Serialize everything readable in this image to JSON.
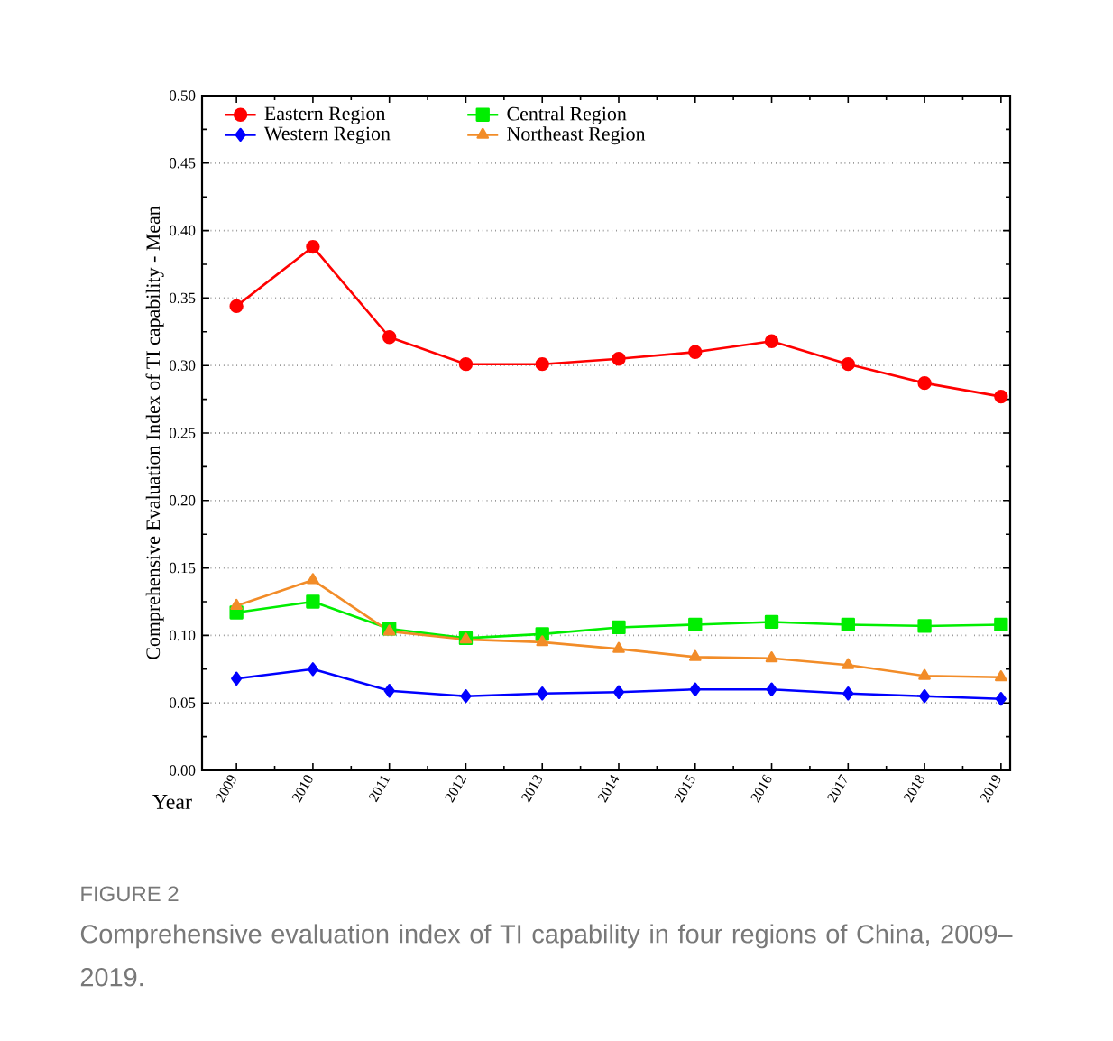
{
  "chart_data": {
    "type": "line",
    "categories": [
      "2009",
      "2010",
      "2011",
      "2012",
      "2013",
      "2014",
      "2015",
      "2016",
      "2017",
      "2018",
      "2019"
    ],
    "xlabel": "Year",
    "ylabel": "Comprehensive Evaluation Index of TI capability - Mean",
    "series": [
      {
        "name": "Eastern Region",
        "color": "#ff0000",
        "marker": "circle",
        "values": [
          0.344,
          0.388,
          0.321,
          0.301,
          0.301,
          0.305,
          0.31,
          0.318,
          0.301,
          0.287,
          0.277
        ]
      },
      {
        "name": "Central Region",
        "color": "#00ee00",
        "marker": "square",
        "values": [
          0.117,
          0.125,
          0.105,
          0.098,
          0.101,
          0.106,
          0.108,
          0.11,
          0.108,
          0.107,
          0.108
        ]
      },
      {
        "name": "Western Region",
        "color": "#0000ff",
        "marker": "diamond",
        "values": [
          0.068,
          0.075,
          0.059,
          0.055,
          0.057,
          0.058,
          0.06,
          0.06,
          0.057,
          0.055,
          0.053
        ]
      },
      {
        "name": "Northeast Region",
        "color": "#f28c28",
        "marker": "triangle",
        "values": [
          0.122,
          0.141,
          0.103,
          0.097,
          0.095,
          0.09,
          0.084,
          0.083,
          0.078,
          0.07,
          0.069
        ]
      }
    ],
    "ylim": [
      0,
      0.5
    ],
    "yticks": [
      {
        "value": 0,
        "label": "0.00"
      },
      {
        "value": 0.05,
        "label": "0.05"
      },
      {
        "value": 0.1,
        "label": "0.10"
      },
      {
        "value": 0.15,
        "label": "0.15"
      },
      {
        "value": 0.2,
        "label": "0.20"
      },
      {
        "value": 0.25,
        "label": "0.25"
      },
      {
        "value": 0.3,
        "label": "0.30"
      },
      {
        "value": 0.35,
        "label": "0.35"
      },
      {
        "value": 0.4,
        "label": "0.40"
      },
      {
        "value": 0.45,
        "label": "0.45"
      },
      {
        "value": 0.5,
        "label": "0.50"
      }
    ],
    "grid": "y",
    "legend": "top left",
    "annotations": [
      "FIGURE 2",
      "Comprehensive evaluation index of TI capability in four regions of China, 2009–2019."
    ]
  }
}
